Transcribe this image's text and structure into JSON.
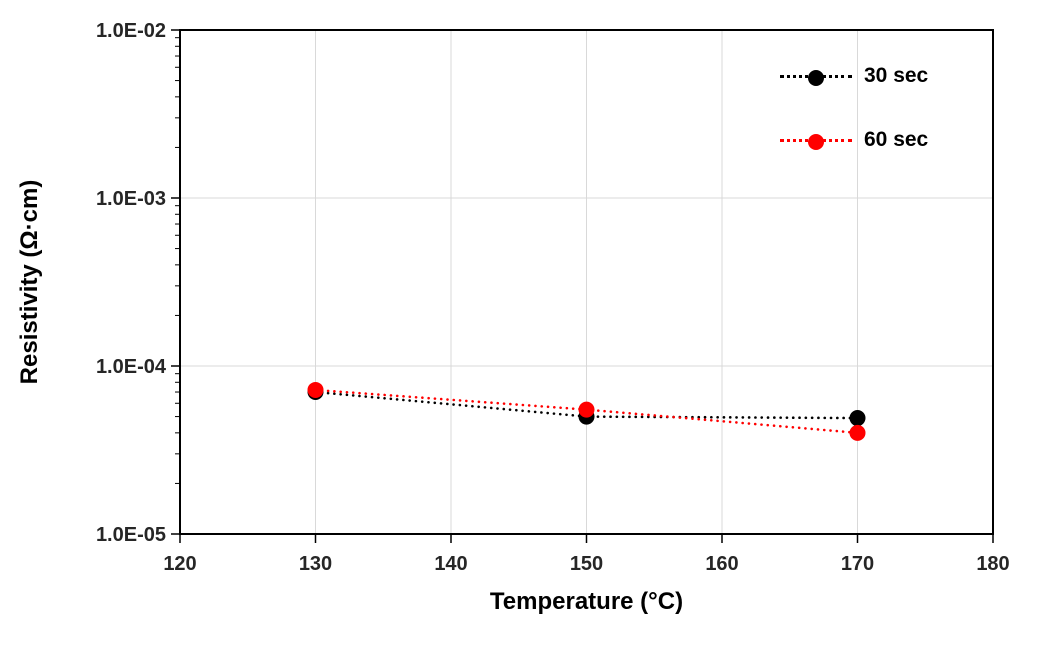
{
  "chart_data": {
    "type": "scatter",
    "title": "",
    "xlabel": "Temperature (°C)",
    "ylabel": "Resistivity (Ω·cm)",
    "x": [
      130,
      150,
      170
    ],
    "series": [
      {
        "name": "30 sec",
        "color": "#000000",
        "values": [
          7e-05,
          5e-05,
          4.9e-05
        ]
      },
      {
        "name": "60 sec",
        "color": "#ff0000",
        "values": [
          7.2e-05,
          5.5e-05,
          4e-05
        ]
      }
    ],
    "line_style": "dotted",
    "marker": "circle",
    "xlim": [
      120,
      180
    ],
    "xticks": [
      120,
      130,
      140,
      150,
      160,
      170,
      180
    ],
    "yscale": "log",
    "ylim": [
      1e-05,
      0.01
    ],
    "yticks": [
      0.01,
      0.001,
      0.0001,
      1e-05
    ],
    "ytick_labels": [
      "1.0E-02",
      "1.0E-03",
      "1.0E-04",
      "1.0E-05"
    ],
    "grid": true,
    "grid_color": "#d9d9d9",
    "border_color": "#000000",
    "legend_position": "top-right"
  }
}
